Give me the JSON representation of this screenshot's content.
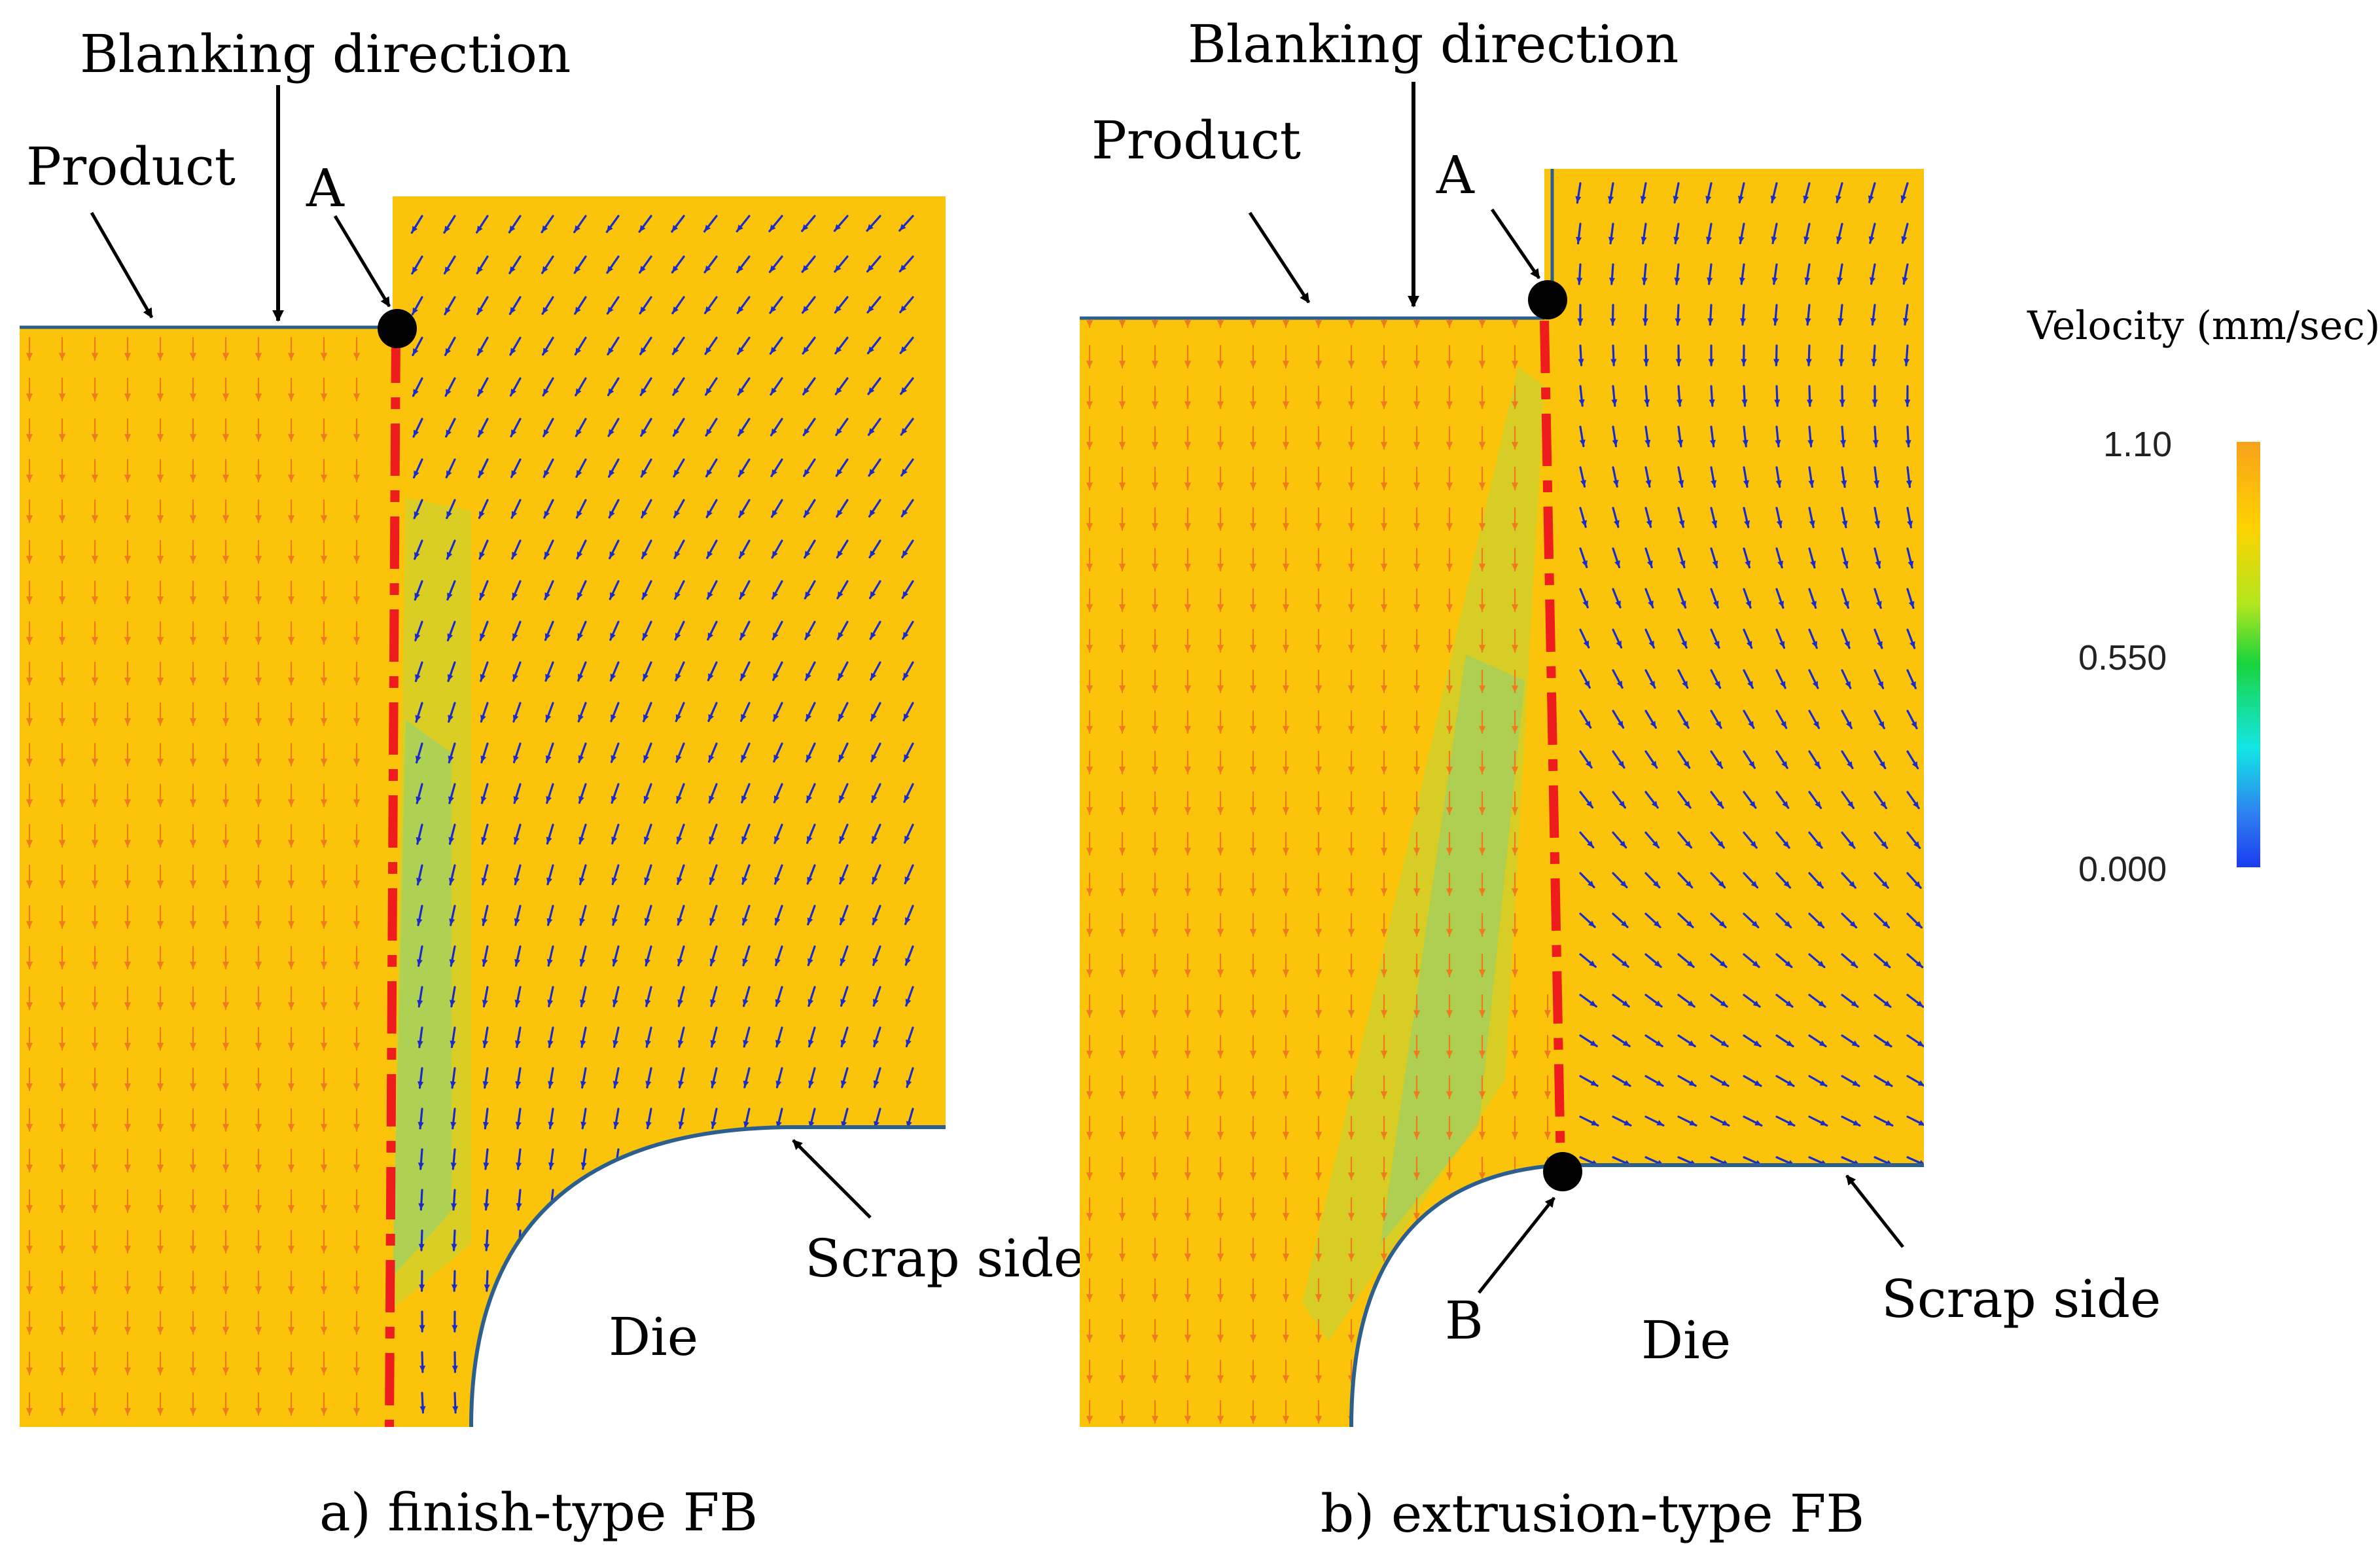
{
  "panel_a": {
    "caption": "a) finish-type FB",
    "label_blanking": "Blanking direction",
    "label_product": "Product",
    "label_point_a": "A",
    "label_scrap": "Scrap side",
    "label_die": "Die"
  },
  "panel_b": {
    "caption": "b) extrusion-type FB",
    "label_blanking": "Blanking direction",
    "label_product": "Product",
    "label_point_a": "A",
    "label_point_b": "B",
    "label_scrap": "Scrap side",
    "label_die": "Die"
  },
  "colorbar": {
    "title": "Velocity (mm/sec)",
    "tick_max": "1.10",
    "tick_mid": "0.550",
    "tick_min": "0.000",
    "stops": [
      "#f7a21b",
      "#ffd200",
      "#b4e61e",
      "#19d43c",
      "#14e6e6",
      "#2f7df0",
      "#1a3cf0"
    ]
  },
  "colors": {
    "material": "#fbc40a",
    "product_arrow": "#f07a1e",
    "scrap_arrow": "#1a2bc8",
    "shear_line": "#ee1c1c",
    "outline": "#2c5f8e"
  }
}
